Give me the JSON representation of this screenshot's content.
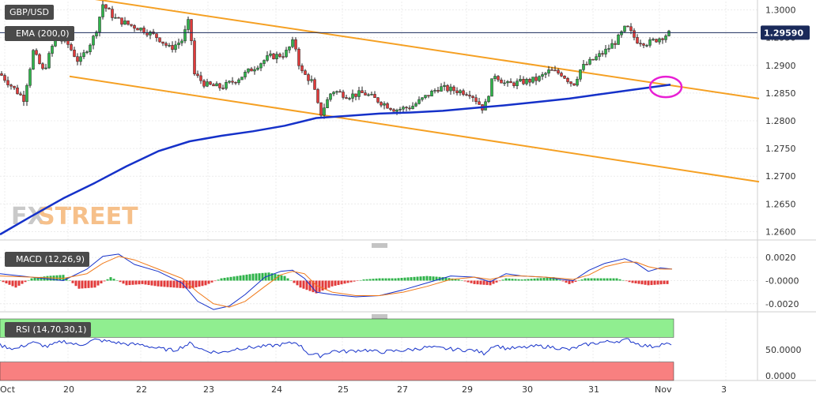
{
  "symbol": "GBP/USD",
  "ema_label": "EMA (200,0)",
  "macd_label": "MACD (12,26,9)",
  "rsi_label": "RSI (14,70,30,1)",
  "watermark": {
    "fx": "FX",
    "street": "STREET"
  },
  "last_price": "1.29590",
  "colors": {
    "bull": "#2fb34a",
    "bear": "#e23a3a",
    "ema": "#1531c9",
    "channel": "#f5a023",
    "highlight": "#e81fd4",
    "macd_line": "#1531c9",
    "signal_line": "#f07a1a",
    "rsi_line": "#1531c9",
    "overbought": "#90ee90",
    "oversold": "#f88080"
  },
  "chart_data": [
    {
      "type": "candlestick",
      "title": "GBP/USD",
      "ylim": [
        1.2585,
        1.3015
      ],
      "yticks": [
        "1.3000",
        "1.2950",
        "1.2900",
        "1.2850",
        "1.2800",
        "1.2750",
        "1.2700",
        "1.2650",
        "1.2600"
      ],
      "xticks": [
        "Oct",
        "20",
        "22",
        "23",
        "24",
        "25",
        "27",
        "29",
        "30",
        "31",
        "Nov",
        "3"
      ],
      "ema200": [
        [
          0,
          1.2595
        ],
        [
          40,
          1.2628
        ],
        [
          80,
          1.266
        ],
        [
          120,
          1.2688
        ],
        [
          160,
          1.2718
        ],
        [
          200,
          1.2745
        ],
        [
          240,
          1.2763
        ],
        [
          280,
          1.2773
        ],
        [
          320,
          1.2781
        ],
        [
          360,
          1.2791
        ],
        [
          400,
          1.2805
        ],
        [
          440,
          1.2809
        ],
        [
          480,
          1.2813
        ],
        [
          520,
          1.2815
        ],
        [
          560,
          1.2818
        ],
        [
          600,
          1.2823
        ],
        [
          640,
          1.2828
        ],
        [
          680,
          1.2834
        ],
        [
          720,
          1.284
        ],
        [
          760,
          1.2848
        ],
        [
          800,
          1.2856
        ],
        [
          848,
          1.2865
        ]
      ],
      "channel_upper": [
        [
          70,
          1.303
        ],
        [
          960,
          1.284
        ]
      ],
      "channel_lower": [
        [
          88,
          1.288
        ],
        [
          960,
          1.269
        ]
      ],
      "price_path": [
        [
          0,
          1.2885
        ],
        [
          15,
          1.2862
        ],
        [
          30,
          1.284
        ],
        [
          42,
          1.2925
        ],
        [
          55,
          1.2888
        ],
        [
          70,
          1.295
        ],
        [
          85,
          1.294
        ],
        [
          100,
          1.2905
        ],
        [
          120,
          1.2955
        ],
        [
          130,
          1.301
        ],
        [
          145,
          1.2985
        ],
        [
          160,
          1.2975
        ],
        [
          180,
          1.2965
        ],
        [
          200,
          1.295
        ],
        [
          215,
          1.293
        ],
        [
          230,
          1.2945
        ],
        [
          240,
          1.2985
        ],
        [
          245,
          1.2885
        ],
        [
          260,
          1.2865
        ],
        [
          280,
          1.286
        ],
        [
          300,
          1.2875
        ],
        [
          320,
          1.2895
        ],
        [
          340,
          1.2915
        ],
        [
          360,
          1.292
        ],
        [
          372,
          1.2945
        ],
        [
          380,
          1.289
        ],
        [
          395,
          1.287
        ],
        [
          405,
          1.281
        ],
        [
          420,
          1.2855
        ],
        [
          440,
          1.2845
        ],
        [
          460,
          1.285
        ],
        [
          480,
          1.2835
        ],
        [
          500,
          1.282
        ],
        [
          520,
          1.2825
        ],
        [
          540,
          1.2845
        ],
        [
          555,
          1.286
        ],
        [
          575,
          1.2855
        ],
        [
          595,
          1.285
        ],
        [
          612,
          1.282
        ],
        [
          625,
          1.2885
        ],
        [
          640,
          1.2865
        ],
        [
          660,
          1.287
        ],
        [
          680,
          1.2875
        ],
        [
          695,
          1.289
        ],
        [
          710,
          1.2885
        ],
        [
          725,
          1.2865
        ],
        [
          735,
          1.2895
        ],
        [
          750,
          1.291
        ],
        [
          765,
          1.2925
        ],
        [
          780,
          1.2945
        ],
        [
          792,
          1.297
        ],
        [
          805,
          1.2945
        ],
        [
          820,
          1.294
        ],
        [
          835,
          1.295
        ],
        [
          848,
          1.2959
        ]
      ]
    },
    {
      "type": "macd",
      "title": "MACD (12,26,9)",
      "ylim": [
        -0.0027,
        0.0027
      ],
      "yticks": [
        "0.0020",
        "-0.0000",
        "-0.0020"
      ],
      "macd": [
        [
          0,
          0.0006
        ],
        [
          40,
          0.0003
        ],
        [
          80,
          0.0
        ],
        [
          110,
          0.001
        ],
        [
          130,
          0.0021
        ],
        [
          150,
          0.0023
        ],
        [
          170,
          0.0014
        ],
        [
          200,
          0.0008
        ],
        [
          230,
          -0.0002
        ],
        [
          250,
          -0.0018
        ],
        [
          270,
          -0.0025
        ],
        [
          290,
          -0.0022
        ],
        [
          310,
          -0.0012
        ],
        [
          335,
          0.0003
        ],
        [
          355,
          0.0008
        ],
        [
          370,
          0.0009
        ],
        [
          385,
          0.0002
        ],
        [
          400,
          -0.001
        ],
        [
          420,
          -0.0012
        ],
        [
          450,
          -0.0014
        ],
        [
          480,
          -0.0013
        ],
        [
          510,
          -0.0008
        ],
        [
          540,
          -0.0002
        ],
        [
          570,
          0.0004
        ],
        [
          600,
          0.0003
        ],
        [
          620,
          -0.0001
        ],
        [
          640,
          0.0006
        ],
        [
          660,
          0.0004
        ],
        [
          690,
          0.0003
        ],
        [
          710,
          0.0001
        ],
        [
          725,
          0.0
        ],
        [
          745,
          0.0009
        ],
        [
          765,
          0.0015
        ],
        [
          790,
          0.0019
        ],
        [
          805,
          0.0015
        ],
        [
          820,
          0.0008
        ],
        [
          835,
          0.0011
        ],
        [
          850,
          0.001
        ]
      ],
      "signal": [
        [
          0,
          0.0004
        ],
        [
          40,
          0.0003
        ],
        [
          80,
          0.0002
        ],
        [
          110,
          0.0006
        ],
        [
          130,
          0.0015
        ],
        [
          150,
          0.0021
        ],
        [
          170,
          0.0018
        ],
        [
          200,
          0.001
        ],
        [
          230,
          0.0002
        ],
        [
          250,
          -0.001
        ],
        [
          270,
          -0.002
        ],
        [
          290,
          -0.0023
        ],
        [
          310,
          -0.0018
        ],
        [
          335,
          -0.0005
        ],
        [
          355,
          0.0005
        ],
        [
          370,
          0.0008
        ],
        [
          385,
          0.0006
        ],
        [
          400,
          -0.0004
        ],
        [
          420,
          -0.001
        ],
        [
          450,
          -0.0013
        ],
        [
          480,
          -0.0013
        ],
        [
          510,
          -0.001
        ],
        [
          540,
          -0.0005
        ],
        [
          570,
          0.0001
        ],
        [
          600,
          0.0003
        ],
        [
          620,
          0.0001
        ],
        [
          640,
          0.0004
        ],
        [
          660,
          0.0004
        ],
        [
          690,
          0.0003
        ],
        [
          710,
          0.0002
        ],
        [
          725,
          0.0001
        ],
        [
          745,
          0.0005
        ],
        [
          765,
          0.0012
        ],
        [
          790,
          0.0016
        ],
        [
          805,
          0.0016
        ],
        [
          820,
          0.0012
        ],
        [
          835,
          0.001
        ],
        [
          850,
          0.001
        ]
      ],
      "histogram": [
        [
          0,
          0.0
        ],
        [
          20,
          -0.0006
        ],
        [
          40,
          0.0002
        ],
        [
          60,
          0.0004
        ],
        [
          80,
          0.0005
        ],
        [
          100,
          -0.0007
        ],
        [
          120,
          -0.0006
        ],
        [
          140,
          0.0003
        ],
        [
          160,
          -0.0004
        ],
        [
          180,
          -0.0003
        ],
        [
          200,
          -0.0005
        ],
        [
          220,
          -0.0006
        ],
        [
          240,
          -0.0007
        ],
        [
          260,
          -0.0004
        ],
        [
          280,
          0.0002
        ],
        [
          300,
          0.0004
        ],
        [
          320,
          0.0006
        ],
        [
          340,
          0.0007
        ],
        [
          360,
          0.0004
        ],
        [
          380,
          -0.0006
        ],
        [
          400,
          -0.0011
        ],
        [
          420,
          -0.0005
        ],
        [
          440,
          -0.0002
        ],
        [
          460,
          0.0001
        ],
        [
          480,
          0.0002
        ],
        [
          500,
          0.0002
        ],
        [
          520,
          0.0003
        ],
        [
          540,
          0.0004
        ],
        [
          560,
          0.0003
        ],
        [
          580,
          0.0001
        ],
        [
          600,
          -0.0003
        ],
        [
          620,
          -0.0004
        ],
        [
          640,
          0.0002
        ],
        [
          660,
          0.0001
        ],
        [
          680,
          0.0002
        ],
        [
          700,
          0.0003
        ],
        [
          720,
          -0.0003
        ],
        [
          740,
          0.0002
        ],
        [
          760,
          0.0002
        ],
        [
          780,
          0.0002
        ],
        [
          800,
          -0.0002
        ],
        [
          820,
          -0.0004
        ],
        [
          840,
          -0.0003
        ]
      ]
    },
    {
      "type": "rsi",
      "title": "RSI (14,70,30,1)",
      "ylim": [
        0,
        100
      ],
      "yticks": [
        "50.0000",
        "0.0000"
      ],
      "overbought": 70,
      "oversold": 30,
      "rsi": [
        [
          0,
          57
        ],
        [
          20,
          51
        ],
        [
          40,
          62
        ],
        [
          60,
          55
        ],
        [
          80,
          64
        ],
        [
          100,
          57
        ],
        [
          120,
          66
        ],
        [
          140,
          63
        ],
        [
          160,
          59
        ],
        [
          180,
          58
        ],
        [
          200,
          52
        ],
        [
          220,
          49
        ],
        [
          240,
          60
        ],
        [
          260,
          48
        ],
        [
          280,
          45
        ],
        [
          300,
          52
        ],
        [
          320,
          54
        ],
        [
          340,
          56
        ],
        [
          360,
          59
        ],
        [
          375,
          62
        ],
        [
          390,
          44
        ],
        [
          405,
          40
        ],
        [
          420,
          48
        ],
        [
          440,
          47
        ],
        [
          460,
          50
        ],
        [
          480,
          46
        ],
        [
          500,
          48
        ],
        [
          520,
          50
        ],
        [
          540,
          54
        ],
        [
          560,
          52
        ],
        [
          580,
          50
        ],
        [
          600,
          49
        ],
        [
          612,
          44
        ],
        [
          625,
          58
        ],
        [
          640,
          52
        ],
        [
          660,
          53
        ],
        [
          680,
          56
        ],
        [
          700,
          54
        ],
        [
          720,
          50
        ],
        [
          740,
          58
        ],
        [
          760,
          62
        ],
        [
          780,
          64
        ],
        [
          795,
          66
        ],
        [
          810,
          58
        ],
        [
          825,
          55
        ],
        [
          840,
          60
        ],
        [
          850,
          57
        ]
      ]
    }
  ]
}
